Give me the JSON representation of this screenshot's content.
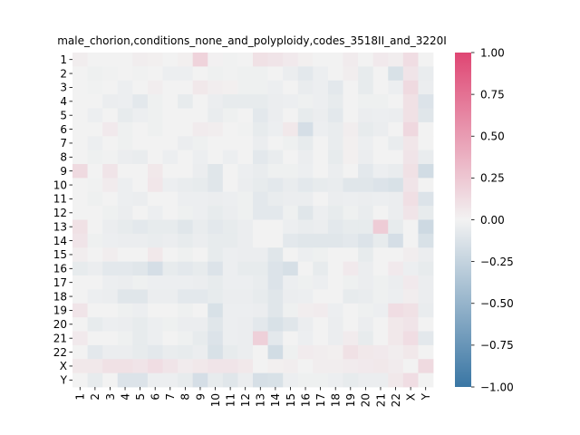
{
  "chart_data": {
    "type": "heatmap",
    "title": "male_chorion,conditions_none_and_polyploidy,codes_3518II_and_3220I",
    "xlabel": "",
    "ylabel": "",
    "categories": [
      "1",
      "2",
      "3",
      "4",
      "5",
      "6",
      "7",
      "8",
      "9",
      "10",
      "11",
      "12",
      "13",
      "14",
      "15",
      "16",
      "17",
      "18",
      "19",
      "20",
      "21",
      "22",
      "X",
      "Y"
    ],
    "colorbar": {
      "vmin": -1.0,
      "vmax": 1.0,
      "ticks": [
        "1.00",
        "0.75",
        "0.50",
        "0.25",
        "0.00",
        "−0.25",
        "−0.50",
        "−0.75",
        "−1.00"
      ],
      "tick_values": [
        1.0,
        0.75,
        0.5,
        0.25,
        0.0,
        -0.25,
        -0.5,
        -0.75,
        -1.0
      ],
      "colors": {
        "negative": "#3a76a4",
        "center": "#f2f2f2",
        "positive": "#df4673"
      }
    },
    "values": [
      [
        0.03,
        0.0,
        0.0,
        0.0,
        0.03,
        0.02,
        0.0,
        0.02,
        0.18,
        0.01,
        -0.01,
        0.0,
        0.1,
        0.08,
        0.05,
        0.02,
        0.0,
        0.0,
        0.04,
        0.0,
        0.05,
        0.03,
        0.12,
        0.0
      ],
      [
        0.0,
        -0.02,
        -0.01,
        0.0,
        -0.01,
        0.0,
        -0.03,
        -0.03,
        0.0,
        -0.02,
        -0.01,
        -0.02,
        -0.02,
        0.0,
        -0.04,
        -0.08,
        -0.03,
        0.0,
        0.03,
        -0.06,
        0.0,
        -0.14,
        0.08,
        -0.05
      ],
      [
        0.0,
        -0.01,
        0.0,
        -0.03,
        0.0,
        0.03,
        0.0,
        0.0,
        0.06,
        0.03,
        0.02,
        -0.02,
        -0.02,
        -0.03,
        0.0,
        -0.05,
        -0.03,
        -0.08,
        0.0,
        -0.06,
        0.0,
        -0.03,
        0.14,
        -0.04
      ],
      [
        0.0,
        0.0,
        -0.04,
        -0.03,
        -0.08,
        -0.02,
        0.0,
        -0.06,
        0.0,
        -0.04,
        -0.06,
        -0.06,
        -0.06,
        -0.04,
        -0.03,
        -0.02,
        -0.03,
        -0.06,
        0.0,
        -0.02,
        -0.02,
        0.0,
        0.1,
        -0.12
      ],
      [
        0.0,
        -0.03,
        0.0,
        -0.06,
        -0.03,
        -0.02,
        0.0,
        0.0,
        0.0,
        -0.05,
        -0.02,
        0.0,
        -0.08,
        -0.04,
        0.0,
        -0.06,
        -0.04,
        -0.08,
        0.0,
        -0.04,
        -0.03,
        -0.04,
        0.1,
        -0.1
      ],
      [
        0.0,
        0.0,
        0.05,
        -0.02,
        0.0,
        -0.02,
        0.0,
        0.0,
        0.04,
        0.03,
        0.0,
        -0.01,
        -0.06,
        -0.03,
        0.06,
        -0.16,
        -0.03,
        -0.05,
        0.03,
        -0.06,
        -0.04,
        0.0,
        0.15,
        0.0
      ],
      [
        0.0,
        -0.03,
        0.0,
        -0.02,
        0.0,
        0.0,
        0.0,
        -0.04,
        -0.02,
        0.0,
        0.0,
        0.0,
        -0.04,
        0.0,
        -0.02,
        -0.06,
        0.0,
        -0.05,
        0.02,
        -0.03,
        0.0,
        -0.05,
        0.07,
        0.0
      ],
      [
        0.0,
        -0.02,
        -0.01,
        -0.04,
        -0.05,
        0.0,
        -0.03,
        0.0,
        -0.03,
        0.0,
        -0.03,
        0.0,
        -0.08,
        -0.05,
        0.0,
        -0.04,
        0.0,
        -0.06,
        0.02,
        -0.04,
        0.0,
        0.0,
        0.08,
        -0.05
      ],
      [
        0.14,
        0.0,
        0.08,
        0.0,
        0.0,
        0.06,
        0.0,
        0.0,
        -0.04,
        -0.1,
        0.0,
        -0.03,
        -0.05,
        -0.02,
        -0.02,
        -0.03,
        0.0,
        -0.04,
        0.0,
        -0.08,
        -0.03,
        -0.05,
        0.1,
        -0.18
      ],
      [
        0.0,
        -0.01,
        0.04,
        -0.03,
        0.0,
        0.07,
        -0.03,
        -0.05,
        -0.06,
        -0.1,
        0.0,
        -0.04,
        -0.06,
        -0.08,
        -0.05,
        -0.08,
        -0.06,
        -0.05,
        -0.1,
        -0.1,
        -0.12,
        -0.14,
        0.08,
        0.0
      ],
      [
        0.0,
        -0.02,
        0.0,
        -0.03,
        -0.04,
        0.0,
        0.0,
        -0.03,
        -0.03,
        -0.04,
        -0.03,
        -0.02,
        -0.08,
        -0.05,
        -0.04,
        -0.04,
        0.0,
        -0.04,
        -0.03,
        -0.04,
        -0.03,
        -0.04,
        0.11,
        -0.12
      ],
      [
        0.0,
        0.0,
        -0.02,
        -0.04,
        0.0,
        -0.03,
        0.0,
        -0.02,
        -0.03,
        -0.06,
        -0.04,
        -0.02,
        -0.08,
        -0.08,
        -0.02,
        -0.1,
        -0.03,
        -0.06,
        -0.02,
        -0.05,
        0.0,
        -0.04,
        0.08,
        -0.06
      ],
      [
        0.1,
        0.0,
        -0.04,
        -0.06,
        -0.08,
        -0.06,
        -0.06,
        -0.1,
        -0.05,
        -0.08,
        -0.06,
        -0.04,
        0.0,
        0.0,
        -0.03,
        -0.05,
        -0.04,
        -0.08,
        -0.06,
        -0.06,
        0.22,
        -0.06,
        0.0,
        -0.2
      ],
      [
        0.08,
        -0.02,
        -0.03,
        -0.04,
        -0.04,
        -0.05,
        -0.04,
        -0.06,
        -0.04,
        -0.06,
        -0.06,
        -0.04,
        0.0,
        0.0,
        -0.08,
        -0.1,
        -0.1,
        -0.1,
        -0.08,
        -0.12,
        -0.06,
        -0.16,
        0.0,
        -0.14
      ],
      [
        0.03,
        0.0,
        0.03,
        0.0,
        0.0,
        0.06,
        0.0,
        -0.02,
        0.0,
        -0.06,
        -0.03,
        -0.04,
        -0.04,
        -0.1,
        0.0,
        -0.03,
        -0.02,
        0.0,
        0.0,
        -0.06,
        0.0,
        0.0,
        0.03,
        -0.04
      ],
      [
        -0.06,
        -0.04,
        -0.08,
        -0.08,
        -0.1,
        -0.16,
        -0.06,
        -0.08,
        -0.06,
        -0.12,
        -0.03,
        -0.06,
        -0.06,
        -0.12,
        -0.15,
        0.0,
        -0.06,
        0.0,
        0.05,
        -0.04,
        0.0,
        0.05,
        -0.03,
        -0.06
      ],
      [
        0.0,
        0.0,
        -0.03,
        -0.04,
        -0.02,
        -0.03,
        -0.03,
        -0.03,
        -0.04,
        -0.06,
        -0.03,
        -0.03,
        -0.05,
        -0.12,
        -0.03,
        -0.02,
        -0.03,
        0.0,
        -0.02,
        -0.04,
        -0.02,
        -0.04,
        0.05,
        -0.04
      ],
      [
        0.0,
        -0.03,
        -0.04,
        -0.1,
        -0.1,
        -0.04,
        -0.04,
        -0.08,
        -0.08,
        -0.06,
        -0.04,
        -0.04,
        -0.06,
        -0.1,
        -0.04,
        -0.03,
        0.0,
        0.0,
        -0.06,
        -0.05,
        -0.02,
        -0.03,
        0.03,
        -0.04
      ],
      [
        0.08,
        0.0,
        0.0,
        -0.02,
        -0.03,
        0.0,
        0.0,
        -0.02,
        0.0,
        -0.14,
        -0.03,
        -0.03,
        -0.04,
        -0.1,
        -0.02,
        0.03,
        0.04,
        -0.03,
        0.0,
        -0.02,
        -0.03,
        0.12,
        0.1,
        -0.05
      ],
      [
        0.0,
        -0.06,
        -0.03,
        -0.04,
        -0.06,
        -0.03,
        -0.02,
        -0.04,
        -0.04,
        -0.1,
        -0.03,
        -0.04,
        -0.08,
        -0.14,
        -0.1,
        -0.04,
        0.0,
        -0.04,
        0.0,
        -0.04,
        0.0,
        0.06,
        0.08,
        0.0
      ],
      [
        0.05,
        0.0,
        0.0,
        -0.02,
        -0.06,
        -0.03,
        0.0,
        -0.02,
        -0.06,
        -0.12,
        -0.03,
        -0.04,
        0.2,
        -0.08,
        0.0,
        -0.03,
        0.0,
        -0.04,
        0.04,
        -0.06,
        0.0,
        0.06,
        0.12,
        -0.08
      ],
      [
        0.0,
        -0.08,
        -0.04,
        -0.04,
        -0.06,
        -0.08,
        -0.05,
        -0.06,
        -0.04,
        -0.14,
        -0.06,
        -0.04,
        0.0,
        -0.18,
        -0.02,
        0.04,
        0.03,
        0.02,
        0.1,
        0.06,
        0.05,
        0.03,
        0.06,
        0.0
      ],
      [
        0.06,
        0.06,
        0.1,
        0.1,
        0.08,
        0.12,
        0.08,
        0.04,
        0.06,
        0.08,
        0.08,
        0.06,
        0.0,
        0.02,
        0.03,
        0.0,
        0.03,
        0.03,
        0.04,
        0.05,
        0.06,
        0.04,
        0.0,
        0.14
      ],
      [
        0.0,
        -0.06,
        0.0,
        -0.12,
        -0.12,
        -0.03,
        -0.03,
        -0.06,
        -0.16,
        -0.06,
        -0.1,
        -0.04,
        -0.15,
        -0.14,
        -0.03,
        -0.02,
        -0.02,
        -0.03,
        -0.06,
        -0.04,
        -0.04,
        0.06,
        0.12,
        0.0
      ]
    ]
  }
}
